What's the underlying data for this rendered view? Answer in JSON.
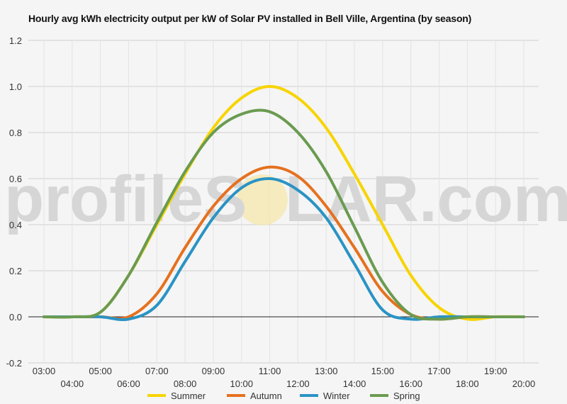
{
  "watermark": {
    "left": "profileS",
    "right": "LAR.com"
  },
  "chart_data": {
    "type": "line",
    "title": "Hourly avg kWh electricity output per kW of Solar PV installed in Bell Ville, Argentina (by season)",
    "xlabel": "",
    "ylabel": "",
    "x": [
      "03:00",
      "04:00",
      "05:00",
      "06:00",
      "07:00",
      "08:00",
      "09:00",
      "10:00",
      "11:00",
      "12:00",
      "13:00",
      "14:00",
      "15:00",
      "16:00",
      "17:00",
      "18:00",
      "19:00",
      "20:00"
    ],
    "ylim": [
      -0.2,
      1.2
    ],
    "yticks": [
      "-0.2",
      "0.0",
      "0.2",
      "0.4",
      "0.6",
      "0.8",
      "1.0",
      "1.2"
    ],
    "grid": true,
    "legend_position": "bottom",
    "series": [
      {
        "name": "Summer",
        "color": "#f7d400",
        "values": [
          0,
          0,
          0.02,
          0.18,
          0.4,
          0.62,
          0.82,
          0.95,
          1.0,
          0.95,
          0.82,
          0.62,
          0.4,
          0.18,
          0.04,
          -0.01,
          0,
          0
        ]
      },
      {
        "name": "Autumn",
        "color": "#e5711f",
        "values": [
          0,
          0,
          0,
          0,
          0.1,
          0.3,
          0.48,
          0.6,
          0.65,
          0.61,
          0.48,
          0.3,
          0.11,
          0.01,
          -0.01,
          0,
          0,
          0
        ]
      },
      {
        "name": "Winter",
        "color": "#2a93c4",
        "values": [
          0,
          0,
          0,
          -0.01,
          0.05,
          0.24,
          0.43,
          0.56,
          0.6,
          0.55,
          0.43,
          0.23,
          0.03,
          -0.01,
          0,
          0,
          0,
          0
        ]
      },
      {
        "name": "Spring",
        "color": "#6a9b50",
        "values": [
          0,
          0,
          0.02,
          0.18,
          0.41,
          0.63,
          0.8,
          0.88,
          0.89,
          0.8,
          0.63,
          0.39,
          0.15,
          0.01,
          -0.01,
          0,
          0,
          0
        ]
      }
    ]
  }
}
